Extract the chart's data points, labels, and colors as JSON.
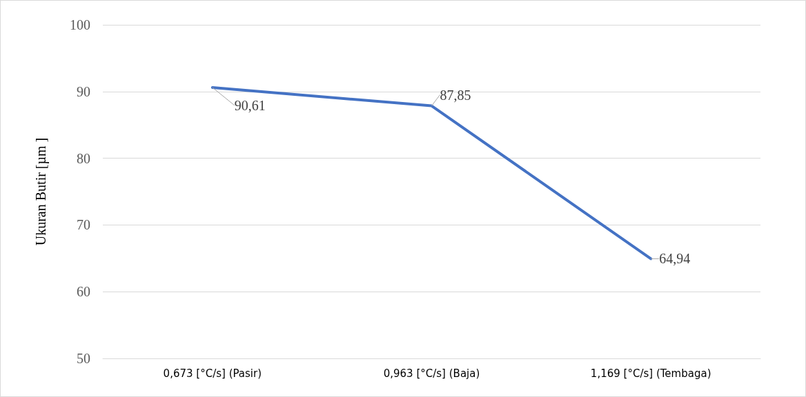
{
  "chart_data": {
    "type": "line",
    "ylabel": "Ukuran Butir [µm ]",
    "categories": [
      "0,673 [°C/s] (Pasir)",
      "0,963 [°C/s] (Baja)",
      "1,169 [°C/s] (Tembaga)"
    ],
    "series": [
      {
        "color": "#4472c4",
        "values": [
          90.61,
          87.85,
          64.94
        ],
        "value_labels": [
          "90,61",
          "87,85",
          "64,94"
        ]
      }
    ],
    "ylim": [
      50,
      100
    ],
    "yticks": [
      50,
      60,
      70,
      80,
      90,
      100
    ],
    "grid": "y",
    "marker": "none",
    "line_style": "solid"
  }
}
